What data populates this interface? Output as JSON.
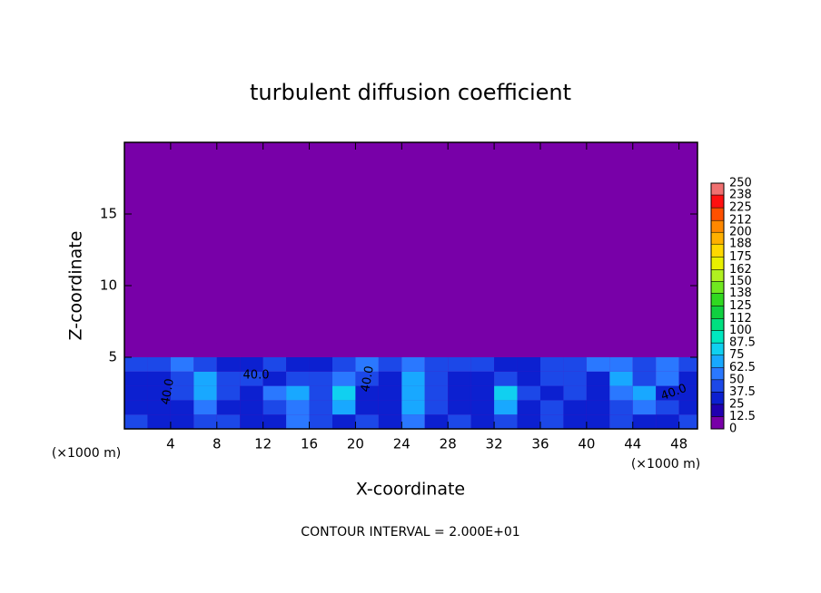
{
  "chart_data": {
    "type": "contour",
    "title": "turbulent diffusion coefficient",
    "xlabel": "X-coordinate",
    "ylabel": "Z-coordinate",
    "x_unit": "(×1000 m)",
    "x_unit_right": "(×1000 m)",
    "footer": "CONTOUR INTERVAL = 2.000E+01",
    "xlim": [
      0,
      49.6
    ],
    "ylim": [
      0,
      20
    ],
    "xticks": [
      4,
      8,
      12,
      16,
      20,
      24,
      28,
      32,
      36,
      40,
      44,
      48
    ],
    "yticks": [
      5,
      10,
      15
    ],
    "colorbar_ticks": [
      0,
      12.5,
      25,
      37.5,
      50,
      62.5,
      75,
      87.5,
      100,
      112,
      125,
      138,
      150,
      162,
      175,
      188,
      200,
      212,
      225,
      238,
      250
    ],
    "colorbar_colors": [
      "#7800a8",
      "#2000b0",
      "#0c20d0",
      "#1c48e8",
      "#2a78ff",
      "#18a8ff",
      "#10d0f0",
      "#00e8c0",
      "#00e080",
      "#10d040",
      "#30d820",
      "#70e820",
      "#b0f020",
      "#e8f000",
      "#ffd800",
      "#ffb000",
      "#ff8800",
      "#ff5000",
      "#ff1010",
      "#f07070"
    ],
    "contour_labels": [
      "40.0",
      "40.0",
      "40.0",
      "40.0"
    ],
    "field": {
      "x": [
        1,
        3,
        5,
        7,
        9,
        11,
        13,
        15,
        17,
        19,
        21,
        23,
        25,
        27,
        29,
        31,
        33,
        35,
        37,
        39,
        41,
        43,
        45,
        47,
        49
      ],
      "z": [
        0.5,
        1.5,
        2.5,
        3.5,
        4.5,
        5.5
      ],
      "values": [
        [
          40,
          35,
          30,
          45,
          40,
          30,
          35,
          50,
          40,
          30,
          40,
          35,
          60,
          35,
          40,
          30,
          45,
          35,
          40,
          30,
          35,
          40,
          35,
          30,
          40
        ],
        [
          30,
          25,
          35,
          60,
          35,
          30,
          40,
          55,
          45,
          70,
          35,
          30,
          65,
          40,
          35,
          30,
          70,
          30,
          45,
          35,
          25,
          40,
          55,
          40,
          30
        ],
        [
          25,
          30,
          40,
          70,
          40,
          35,
          60,
          70,
          40,
          75,
          30,
          35,
          70,
          40,
          30,
          35,
          75,
          45,
          30,
          40,
          30,
          60,
          70,
          35,
          30
        ],
        [
          35,
          30,
          45,
          65,
          45,
          40,
          35,
          45,
          40,
          60,
          40,
          35,
          70,
          45,
          35,
          30,
          40,
          35,
          40,
          45,
          35,
          65,
          40,
          50,
          35
        ],
        [
          45,
          40,
          50,
          40,
          30,
          35,
          40,
          30,
          35,
          45,
          50,
          45,
          50,
          40,
          45,
          40,
          35,
          30,
          40,
          45,
          50,
          55,
          40,
          60,
          45
        ],
        [
          10,
          5,
          0,
          0,
          0,
          0,
          0,
          0,
          0,
          0,
          0,
          0,
          5,
          0,
          0,
          0,
          0,
          0,
          0,
          0,
          5,
          10,
          0,
          5,
          10
        ]
      ]
    }
  }
}
